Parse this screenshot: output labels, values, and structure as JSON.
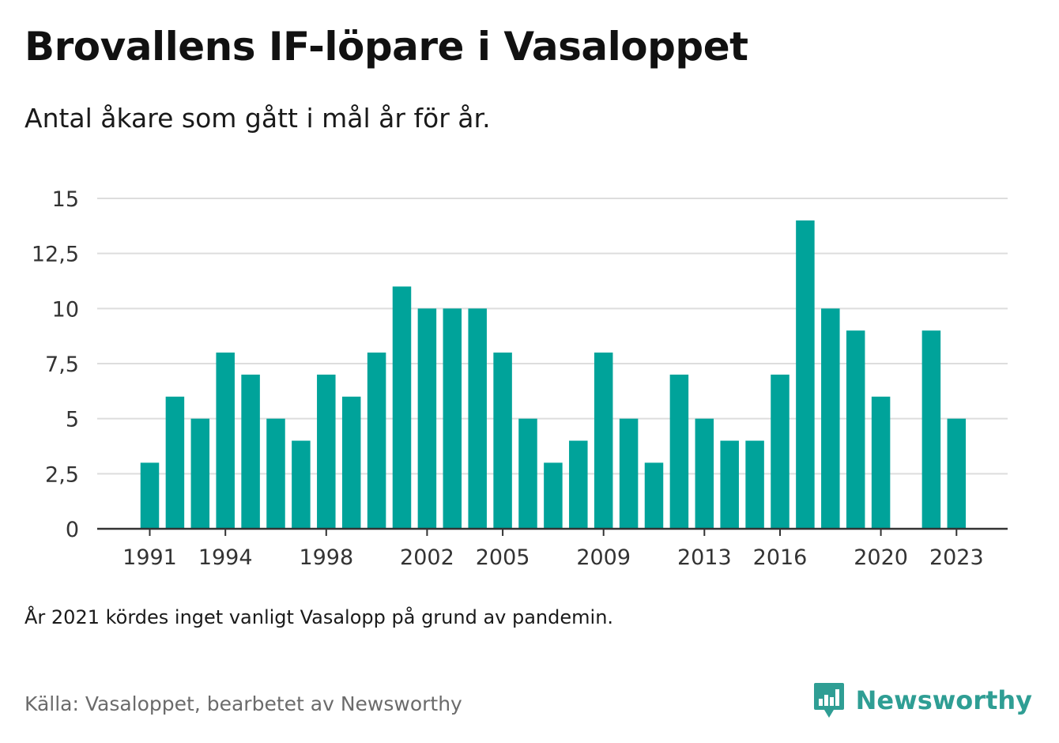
{
  "title": "Brovallens IF-löpare i Vasaloppet",
  "subtitle": "Antal åkare som gått i mål år för år.",
  "note": "År 2021 kördes inget vanligt Vasalopp på grund av pandemin.",
  "source": "Källa: Vasaloppet, bearbetet av Newsworthy",
  "brand": {
    "name": "Newsworthy",
    "icon": "newsworthy-logo-icon",
    "color": "#2f9e94"
  },
  "colors": {
    "bar": "#00a39a",
    "grid": "#dddddd",
    "axis": "#333333"
  },
  "chart_data": {
    "type": "bar",
    "title": "Brovallens IF-löpare i Vasaloppet",
    "xlabel": "",
    "ylabel": "",
    "ylim": [
      0,
      15
    ],
    "y_ticks": [
      0,
      2.5,
      5,
      7.5,
      10,
      12.5,
      15
    ],
    "y_tick_labels": [
      "0",
      "2,5",
      "5",
      "7,5",
      "10",
      "12,5",
      "15"
    ],
    "x_tick_labels": [
      "1991",
      "1994",
      "1998",
      "2002",
      "2005",
      "2009",
      "2013",
      "2016",
      "2020",
      "2023"
    ],
    "grid": true,
    "categories": [
      1991,
      1992,
      1993,
      1994,
      1995,
      1996,
      1997,
      1998,
      1999,
      2000,
      2001,
      2002,
      2003,
      2004,
      2005,
      2006,
      2007,
      2008,
      2009,
      2010,
      2011,
      2012,
      2013,
      2014,
      2015,
      2016,
      2017,
      2018,
      2019,
      2020,
      2021,
      2022,
      2023
    ],
    "values": [
      3,
      6,
      5,
      8,
      7,
      5,
      4,
      7,
      6,
      8,
      11,
      10,
      10,
      10,
      8,
      5,
      3,
      4,
      8,
      5,
      3,
      7,
      5,
      4,
      4,
      7,
      14,
      10,
      9,
      6,
      null,
      9,
      5
    ]
  }
}
